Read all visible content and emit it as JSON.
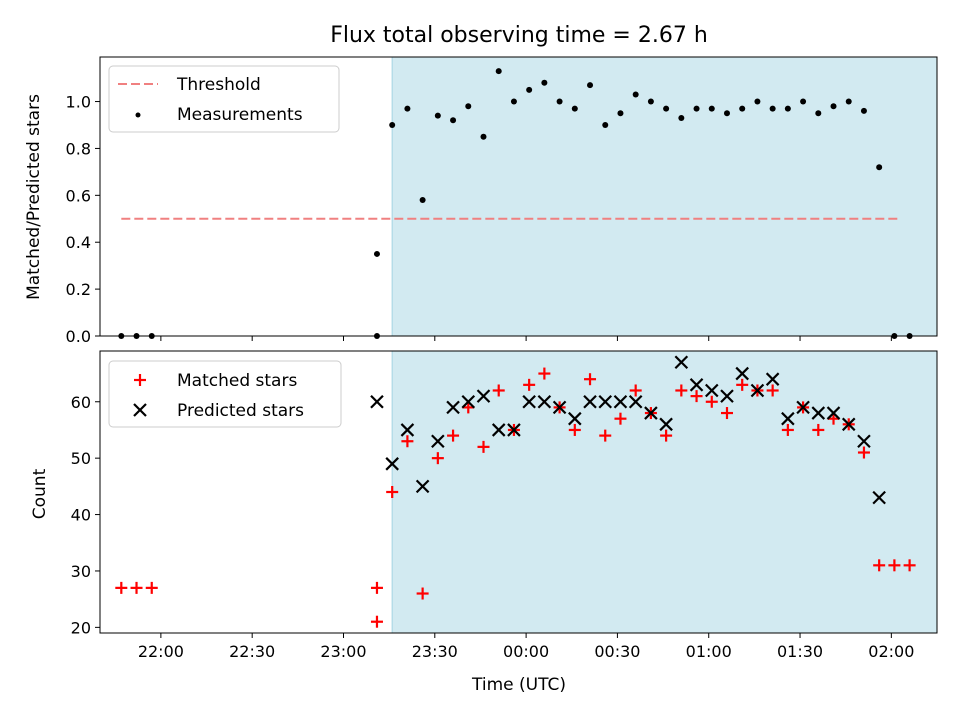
{
  "chart_data": [
    {
      "type": "scatter",
      "title": "Flux total observing time = 2.67 h",
      "xlabel": "",
      "ylabel": "Matched/Predicted stars",
      "xlim": [
        "21:40",
        "02:15"
      ],
      "ylim": [
        0,
        1.19
      ],
      "yticks": [
        "0.0",
        "0.2",
        "0.4",
        "0.6",
        "0.8",
        "1.0"
      ],
      "shaded_span": [
        "23:16",
        "02:16"
      ],
      "shade_color": "#add8e6",
      "legend_location": "upper-left",
      "threshold": {
        "name": "Threshold",
        "value": 0.5,
        "x": [
          "21:47",
          "02:03"
        ],
        "color": "#f08080"
      },
      "measurements": {
        "name": "Measurements",
        "color": "#000000",
        "points": [
          [
            "21:47",
            0.0
          ],
          [
            "21:52",
            0.0
          ],
          [
            "21:57",
            0.0
          ],
          [
            "23:11",
            0.0
          ],
          [
            "23:11",
            0.35
          ],
          [
            "23:16",
            0.9
          ],
          [
            "23:21",
            0.97
          ],
          [
            "23:26",
            0.58
          ],
          [
            "23:31",
            0.94
          ],
          [
            "23:36",
            0.92
          ],
          [
            "23:41",
            0.98
          ],
          [
            "23:46",
            0.85
          ],
          [
            "23:51",
            1.13
          ],
          [
            "23:56",
            1.0
          ],
          [
            "00:01",
            1.05
          ],
          [
            "00:06",
            1.08
          ],
          [
            "00:11",
            1.0
          ],
          [
            "00:16",
            0.97
          ],
          [
            "00:21",
            1.07
          ],
          [
            "00:26",
            0.9
          ],
          [
            "00:31",
            0.95
          ],
          [
            "00:36",
            1.03
          ],
          [
            "00:41",
            1.0
          ],
          [
            "00:46",
            0.97
          ],
          [
            "00:51",
            0.93
          ],
          [
            "00:56",
            0.97
          ],
          [
            "01:01",
            0.97
          ],
          [
            "01:06",
            0.95
          ],
          [
            "01:11",
            0.97
          ],
          [
            "01:16",
            1.0
          ],
          [
            "01:21",
            0.97
          ],
          [
            "01:26",
            0.97
          ],
          [
            "01:31",
            1.0
          ],
          [
            "01:36",
            0.95
          ],
          [
            "01:41",
            0.98
          ],
          [
            "01:46",
            1.0
          ],
          [
            "01:51",
            0.96
          ],
          [
            "01:56",
            0.72
          ],
          [
            "02:01",
            0.0
          ],
          [
            "02:06",
            0.0
          ]
        ]
      }
    },
    {
      "type": "scatter",
      "title": "",
      "xlabel": "Time (UTC)",
      "ylabel": "Count",
      "xlim": [
        "21:40",
        "02:15"
      ],
      "ylim": [
        19,
        69
      ],
      "xticks": [
        "22:00",
        "22:30",
        "23:00",
        "23:30",
        "00:00",
        "00:30",
        "01:00",
        "01:30",
        "02:00"
      ],
      "yticks": [
        "20",
        "30",
        "40",
        "50",
        "60"
      ],
      "shaded_span": [
        "23:16",
        "02:16"
      ],
      "shade_color": "#add8e6",
      "legend_location": "upper-left",
      "series": [
        {
          "name": "Matched stars",
          "marker": "plus",
          "color": "#ff0000",
          "points": [
            [
              "21:47",
              27
            ],
            [
              "21:52",
              27
            ],
            [
              "21:57",
              27
            ],
            [
              "23:11",
              27
            ],
            [
              "23:11",
              21
            ],
            [
              "23:16",
              44
            ],
            [
              "23:21",
              53
            ],
            [
              "23:26",
              26
            ],
            [
              "23:31",
              50
            ],
            [
              "23:36",
              54
            ],
            [
              "23:41",
              59
            ],
            [
              "23:46",
              52
            ],
            [
              "23:51",
              62
            ],
            [
              "23:56",
              55
            ],
            [
              "00:01",
              63
            ],
            [
              "00:06",
              65
            ],
            [
              "00:11",
              59
            ],
            [
              "00:16",
              55
            ],
            [
              "00:21",
              64
            ],
            [
              "00:26",
              54
            ],
            [
              "00:31",
              57
            ],
            [
              "00:36",
              62
            ],
            [
              "00:41",
              58
            ],
            [
              "00:46",
              54
            ],
            [
              "00:51",
              62
            ],
            [
              "00:56",
              61
            ],
            [
              "01:01",
              60
            ],
            [
              "01:06",
              58
            ],
            [
              "01:11",
              63
            ],
            [
              "01:16",
              62
            ],
            [
              "01:21",
              62
            ],
            [
              "01:26",
              55
            ],
            [
              "01:31",
              59
            ],
            [
              "01:36",
              55
            ],
            [
              "01:41",
              57
            ],
            [
              "01:46",
              56
            ],
            [
              "01:51",
              51
            ],
            [
              "01:56",
              31
            ],
            [
              "02:01",
              31
            ],
            [
              "02:06",
              31
            ]
          ]
        },
        {
          "name": "Predicted stars",
          "marker": "x",
          "color": "#000000",
          "points": [
            [
              "23:11",
              60
            ],
            [
              "23:16",
              49
            ],
            [
              "23:21",
              55
            ],
            [
              "23:26",
              45
            ],
            [
              "23:31",
              53
            ],
            [
              "23:36",
              59
            ],
            [
              "23:41",
              60
            ],
            [
              "23:46",
              61
            ],
            [
              "23:51",
              55
            ],
            [
              "23:56",
              55
            ],
            [
              "00:01",
              60
            ],
            [
              "00:06",
              60
            ],
            [
              "00:11",
              59
            ],
            [
              "00:16",
              57
            ],
            [
              "00:21",
              60
            ],
            [
              "00:26",
              60
            ],
            [
              "00:31",
              60
            ],
            [
              "00:36",
              60
            ],
            [
              "00:41",
              58
            ],
            [
              "00:46",
              56
            ],
            [
              "00:51",
              67
            ],
            [
              "00:56",
              63
            ],
            [
              "01:01",
              62
            ],
            [
              "01:06",
              61
            ],
            [
              "01:11",
              65
            ],
            [
              "01:16",
              62
            ],
            [
              "01:21",
              64
            ],
            [
              "01:26",
              57
            ],
            [
              "01:31",
              59
            ],
            [
              "01:36",
              58
            ],
            [
              "01:41",
              58
            ],
            [
              "01:46",
              56
            ],
            [
              "01:51",
              53
            ],
            [
              "01:56",
              43
            ]
          ]
        }
      ]
    }
  ]
}
